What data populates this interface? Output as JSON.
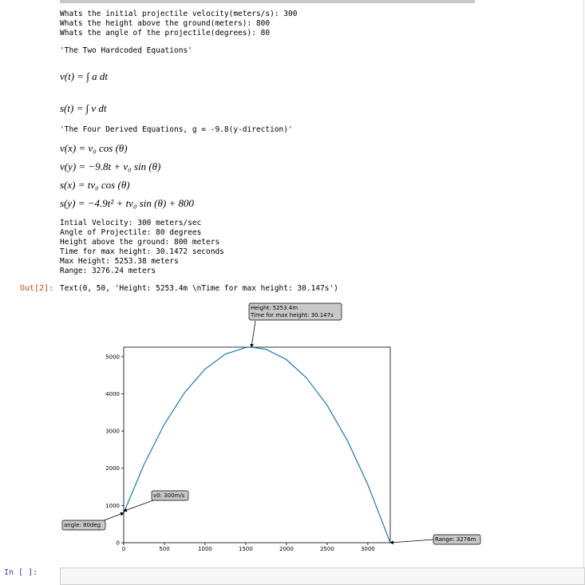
{
  "inputs": [
    "Whats the initial projectile velocity(meters/s): 300",
    "Whats the height above the ground(meters): 800",
    "Whats the angle of the projectile(degrees): 80"
  ],
  "hardcoded_heading": "'The Two Hardcoded Equations'",
  "hardcoded": [
    "v(t) = ∫ a dt",
    "s(t) = ∫ v dt"
  ],
  "derived_heading": "'The Four Derived Equations, g = -9.8(y-direction)'",
  "derived": [
    "v(x) = v₀ cos (θ)",
    "v(y) = −9.8t + v₀ sin (θ)",
    "s(x) = tv₀ cos (θ)",
    "s(y) = −4.9t² + tv₀ sin (θ) + 800"
  ],
  "results": [
    "Intial Velocity: 300 meters/sec",
    "Angle of Projectile: 80 degrees",
    "Height above the ground: 800 meters",
    "Time for max height: 30.1472 seconds",
    "Max Height: 5253.38 meters",
    "Range: 3276.24 meters"
  ],
  "out_prompt": "Out[2]:",
  "out_text": "Text(0, 50, 'Height: 5253.4m \\nTime for max height: 30.147s')",
  "next_prompt": "In [ ]:",
  "chart_data": {
    "type": "line",
    "x": [
      0,
      250,
      500,
      750,
      1000,
      1250,
      1500,
      1570,
      1750,
      2000,
      2250,
      2500,
      2750,
      3000,
      3276
    ],
    "series": [
      {
        "color": "#1f77b4",
        "values": [
          800,
          2104.9,
          3184.2,
          4037.7,
          4665.6,
          5067.7,
          5244.1,
          5252.9,
          5194.8,
          4919.8,
          4419.0,
          3692.6,
          2740.4,
          1562.5,
          0
        ]
      }
    ],
    "xlim": [
      0,
      3276
    ],
    "ylim": [
      0,
      5253.4
    ],
    "xticks": [
      0,
      500,
      1000,
      1500,
      2000,
      2500,
      3000
    ],
    "yticks": [
      0,
      1000,
      2000,
      3000,
      4000,
      5000
    ],
    "annotations": [
      {
        "text": [
          "Height: 5253.4m",
          "Time for max height: 30.147s"
        ],
        "x": 1570,
        "y": 5253.4
      },
      {
        "text": [
          "v0: 300m/s"
        ],
        "x": 0,
        "y": 850
      },
      {
        "text": [
          "angle: 80deg"
        ],
        "x": 0,
        "y": 800
      },
      {
        "text": [
          "Range: 3276m"
        ],
        "x": 3276,
        "y": 0
      }
    ]
  }
}
